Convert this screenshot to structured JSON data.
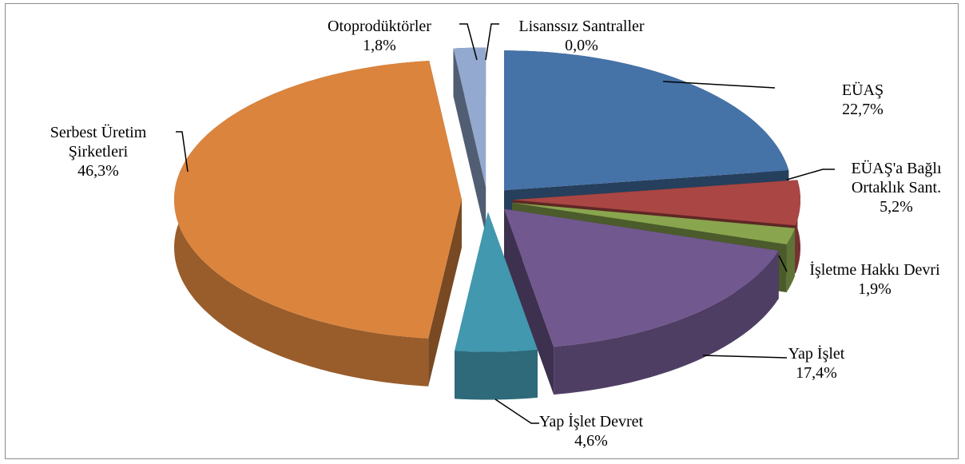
{
  "chart_data": {
    "type": "pie",
    "categories": [
      "EÜAŞ",
      "EÜAŞ'a Bağlı Ortaklık Sant.",
      "İşletme Hakkı Devri",
      "Yap İşlet",
      "Yap İşlet Devret",
      "Serbest Üretim Şirketleri",
      "Otoprodüktörler",
      "Lisanssız Santraller"
    ],
    "values": [
      22.7,
      5.2,
      1.9,
      17.4,
      4.6,
      46.3,
      1.8,
      0.0
    ],
    "value_labels": [
      "22,7%",
      "5,2%",
      "1,9%",
      "17,4%",
      "4,6%",
      "46,3%",
      "1,8%",
      "0,0%"
    ],
    "colors": [
      "#4572a7",
      "#aa4643",
      "#89a54e",
      "#71588f",
      "#4198af",
      "#db843d",
      "#93a9cf",
      "#b9cd96"
    ]
  }
}
